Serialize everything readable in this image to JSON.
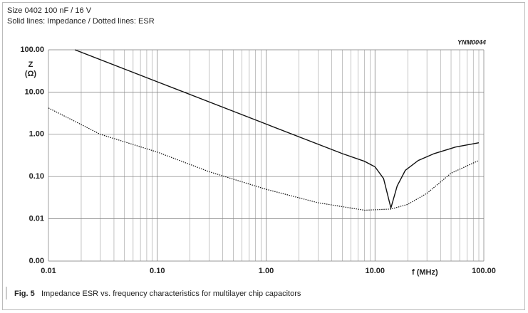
{
  "chart_data": {
    "type": "line",
    "header": [
      "Size 0402 100 nF / 16 V",
      "Solid lines: Impedance / Dotted lines: ESR"
    ],
    "code": "YNM0044",
    "ylabel": [
      "Z",
      "(Ω)"
    ],
    "xlabel": "f  (MHz)",
    "caption": {
      "label": "Fig. 5",
      "text": "Impedance ESR vs. frequency characteristics for multilayer chip capacitors"
    },
    "xscale": "log",
    "yscale": "log",
    "xlim": [
      0.01,
      100
    ],
    "ylim": [
      0.001,
      100
    ],
    "xticks": [
      0.01,
      {
        "value": 0.1,
        "label": "0.10"
      },
      {
        "value": 1,
        "label": "1.00"
      },
      {
        "value": 10,
        "label": "10.00"
      },
      {
        "value": 100,
        "label": "100.00"
      }
    ],
    "yticks": [
      {
        "value": 0.001,
        "label": "0.00"
      },
      0.01,
      {
        "value": 0.1,
        "label": "0.10"
      },
      {
        "value": 1,
        "label": "1.00"
      },
      {
        "value": 10,
        "label": "10.00"
      },
      {
        "value": 100,
        "label": "100.00"
      }
    ],
    "grid": true,
    "minor_grid_x": true,
    "series": [
      {
        "name": "Impedance",
        "color": "#111",
        "dash": "solid",
        "x": [
          0.0175,
          0.1,
          1,
          5,
          8,
          10,
          12,
          14,
          16,
          19,
          25,
          35,
          55,
          90
        ],
        "values": [
          100,
          17.5,
          1.75,
          0.35,
          0.23,
          0.17,
          0.09,
          0.018,
          0.06,
          0.14,
          0.24,
          0.35,
          0.5,
          0.63
        ]
      },
      {
        "name": "ESR",
        "color": "#111",
        "dash": "dotted",
        "x": [
          0.01,
          0.03,
          0.1,
          0.3,
          1,
          3,
          8,
          14,
          20,
          30,
          50,
          90
        ],
        "values": [
          4.2,
          1.0,
          0.38,
          0.13,
          0.05,
          0.024,
          0.016,
          0.017,
          0.022,
          0.04,
          0.12,
          0.24
        ]
      }
    ]
  }
}
